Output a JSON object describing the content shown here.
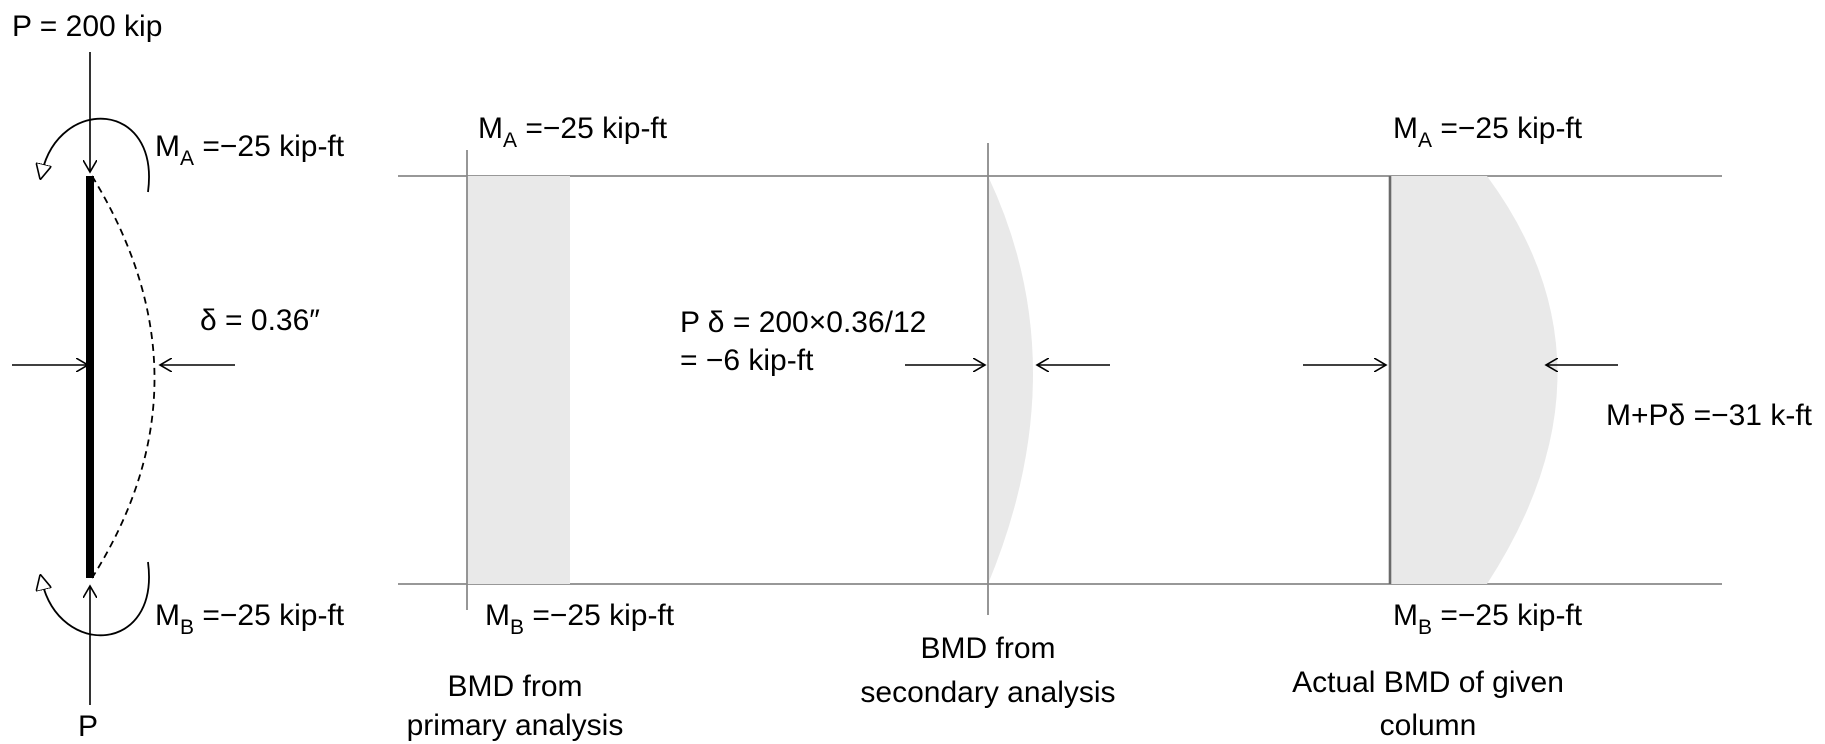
{
  "load": {
    "top": "P = 200 kip",
    "bottom": "P"
  },
  "moments": {
    "sym_a": "M",
    "sub_a": "A",
    "sym_b": "M",
    "sub_b": "B",
    "value": " =−25 kip-ft"
  },
  "deflection": {
    "label": "δ = 0.36″"
  },
  "secondary": {
    "line1": "P δ = 200×0.36/12",
    "line2": "= −6 kip-ft"
  },
  "actual": {
    "label": "M+Pδ =−31 k-ft"
  },
  "captions": {
    "primary": [
      "BMD from",
      "primary analysis"
    ],
    "secondary": [
      "BMD from",
      "secondary analysis"
    ],
    "actual": [
      "Actual BMD of given",
      "column"
    ]
  }
}
